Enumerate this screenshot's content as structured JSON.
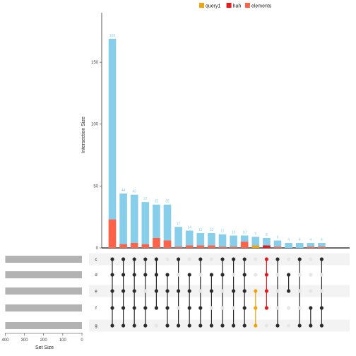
{
  "chart_data": {
    "type": "bar",
    "ylabel": "Intersection Size",
    "ylim": [
      0,
      190
    ],
    "yticks": [
      0,
      50,
      100,
      150
    ],
    "set_size_label": "Set Size",
    "set_size_xlim": [
      0,
      420
    ],
    "set_size_ticks": [
      400,
      300,
      200,
      100,
      0
    ],
    "sets": [
      "c",
      "d",
      "e",
      "f",
      "g"
    ],
    "set_sizes": [
      400,
      400,
      400,
      400,
      400
    ],
    "legend": [
      {
        "name": "query1",
        "color": "#f0a30a"
      },
      {
        "name": "hah",
        "color": "#e41a1c"
      },
      {
        "name": "elements",
        "color": "#ff6347"
      }
    ],
    "colors": {
      "main_bar": "#87ceeb",
      "set_bar": "#b3b3b3",
      "dot_active": "#2b2b2b",
      "dot_inactive": "#e6e6e6",
      "stripe": "#f3f3f3"
    },
    "intersections": [
      {
        "label": "169",
        "value": 169,
        "members": [
          "c",
          "d",
          "e",
          "f",
          "g"
        ],
        "elements": 23
      },
      {
        "label": "44",
        "value": 44,
        "members": [
          "c",
          "d",
          "e",
          "f",
          "g"
        ],
        "elements": 3
      },
      {
        "label": "43",
        "value": 43,
        "members": [
          "c",
          "d",
          "e",
          "f",
          "g"
        ],
        "elements": 4
      },
      {
        "label": "37",
        "value": 37,
        "members": [
          "c",
          "d",
          "f",
          "g"
        ],
        "elements": 3
      },
      {
        "label": "35",
        "value": 35,
        "members": [
          "c",
          "d",
          "e",
          "f"
        ],
        "elements": 8
      },
      {
        "label": "35",
        "value": 35,
        "members": [
          "d",
          "e",
          "f",
          "g"
        ],
        "elements": 6
      },
      {
        "label": "17",
        "value": 17,
        "members": [
          "c",
          "e",
          "g"
        ],
        "elements": 1
      },
      {
        "label": "14",
        "value": 14,
        "members": [
          "d",
          "e",
          "f",
          "g"
        ],
        "elements": 2
      },
      {
        "label": "12",
        "value": 12,
        "members": [
          "c",
          "f",
          "g"
        ],
        "elements": 2
      },
      {
        "label": "12",
        "value": 12,
        "members": [
          "d",
          "e",
          "g"
        ],
        "elements": 2
      },
      {
        "label": "11",
        "value": 11,
        "members": [
          "c",
          "d",
          "g"
        ],
        "elements": 1
      },
      {
        "label": "10",
        "value": 10,
        "members": [
          "c",
          "e",
          "g"
        ],
        "elements": 1
      },
      {
        "label": "10",
        "value": 10,
        "members": [
          "c",
          "d",
          "e",
          "f",
          "g"
        ],
        "elements": 5
      },
      {
        "label": "9",
        "value": 9,
        "members": [
          "e",
          "f",
          "g"
        ],
        "query1": 2
      },
      {
        "label": "8",
        "value": 8,
        "members": [
          "c",
          "d",
          "e",
          "f"
        ],
        "hah": 2
      },
      {
        "label": "6",
        "value": 6,
        "members": [
          "c",
          "g"
        ],
        "elements": 1
      },
      {
        "label": "4",
        "value": 4,
        "members": [
          "d",
          "e"
        ],
        "elements": 0
      },
      {
        "label": "4",
        "value": 4,
        "members": [
          "c",
          "g"
        ],
        "elements": 0
      },
      {
        "label": "4",
        "value": 4,
        "members": [
          "f",
          "g"
        ],
        "elements": 1
      },
      {
        "label": "4",
        "value": 4,
        "members": [
          "c",
          "f",
          "g"
        ],
        "elements": 1
      }
    ]
  }
}
